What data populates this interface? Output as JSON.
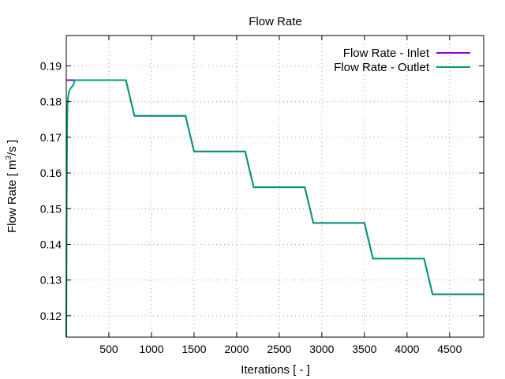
{
  "chart_data": {
    "type": "line",
    "title": "Flow Rate",
    "xlabel": "Iterations [ - ]",
    "ylabel_main": "Flow Rate [ m",
    "ylabel_sup": "3",
    "ylabel_tail": "/s ]",
    "xlim": [
      0,
      4900
    ],
    "ylim": [
      0.114,
      0.1985
    ],
    "xticks": [
      500,
      1000,
      1500,
      2000,
      2500,
      3000,
      3500,
      4000,
      4500
    ],
    "xtick_labels": [
      "500",
      "1000",
      "1500",
      "2000",
      "2500",
      "3000",
      "3500",
      "4000",
      "4500"
    ],
    "yticks": [
      0.12,
      0.13,
      0.14,
      0.15,
      0.16,
      0.17,
      0.18,
      0.19
    ],
    "ytick_labels": [
      "0.12",
      "0.13",
      "0.14",
      "0.15",
      "0.16",
      "0.17",
      "0.18",
      "0.19"
    ],
    "grid": true,
    "legend_position": "top-right",
    "series": [
      {
        "name": "Flow Rate - Inlet",
        "color": "#9400d3",
        "x": [
          0,
          700,
          800,
          1400,
          1500,
          2100,
          2200,
          2800,
          2900,
          3500,
          3600,
          4200,
          4300,
          4900
        ],
        "y": [
          0.186,
          0.186,
          0.176,
          0.176,
          0.166,
          0.166,
          0.156,
          0.156,
          0.146,
          0.146,
          0.136,
          0.136,
          0.126,
          0.126
        ]
      },
      {
        "name": "Flow Rate - Outlet",
        "color": "#009e73",
        "x": [
          0,
          5,
          10,
          15,
          20,
          30,
          45,
          60,
          80,
          100,
          700,
          800,
          1400,
          1500,
          2100,
          2200,
          2800,
          2900,
          3500,
          3600,
          4200,
          4300,
          4900
        ],
        "y": [
          0.114,
          0.15,
          0.172,
          0.179,
          0.181,
          0.1825,
          0.1835,
          0.184,
          0.1845,
          0.186,
          0.186,
          0.176,
          0.176,
          0.166,
          0.166,
          0.156,
          0.156,
          0.146,
          0.146,
          0.136,
          0.136,
          0.126,
          0.126
        ]
      }
    ]
  }
}
